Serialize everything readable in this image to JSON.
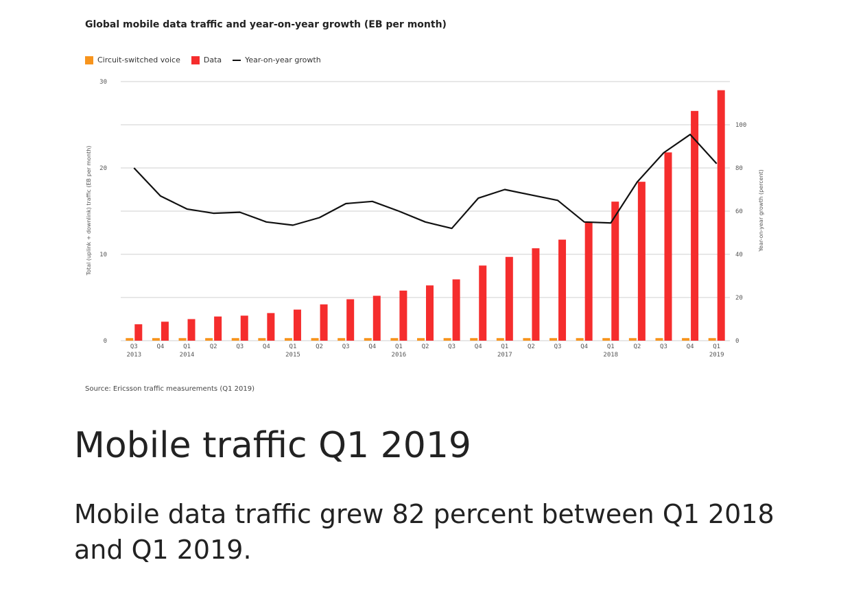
{
  "chart_data": {
    "type": "bar",
    "title": "Global mobile data traffic and year-on-year growth (EB per month)",
    "ylabel": "Total (uplink + downlink) traffic (EB per month)",
    "y2label": "Year-on-year growth (percent)",
    "xlabel": "",
    "ylim": [
      0,
      30
    ],
    "y2lim": [
      0,
      120
    ],
    "yticks": [
      "0",
      "10",
      "20",
      "30"
    ],
    "y2ticks": [
      "0",
      "20",
      "40",
      "60",
      "80",
      "100"
    ],
    "grid": true,
    "legend_position": "top-left",
    "categories": [
      {
        "q": "Q3",
        "year": "2013"
      },
      {
        "q": "Q4",
        "year": ""
      },
      {
        "q": "Q1",
        "year": "2014"
      },
      {
        "q": "Q2",
        "year": ""
      },
      {
        "q": "Q3",
        "year": ""
      },
      {
        "q": "Q4",
        "year": ""
      },
      {
        "q": "Q1",
        "year": "2015"
      },
      {
        "q": "Q2",
        "year": ""
      },
      {
        "q": "Q3",
        "year": ""
      },
      {
        "q": "Q4",
        "year": ""
      },
      {
        "q": "Q1",
        "year": "2016"
      },
      {
        "q": "Q2",
        "year": ""
      },
      {
        "q": "Q3",
        "year": ""
      },
      {
        "q": "Q4",
        "year": ""
      },
      {
        "q": "Q1",
        "year": "2017"
      },
      {
        "q": "Q2",
        "year": ""
      },
      {
        "q": "Q3",
        "year": ""
      },
      {
        "q": "Q4",
        "year": ""
      },
      {
        "q": "Q1",
        "year": "2018"
      },
      {
        "q": "Q2",
        "year": ""
      },
      {
        "q": "Q3",
        "year": ""
      },
      {
        "q": "Q4",
        "year": ""
      },
      {
        "q": "Q1",
        "year": "2019"
      }
    ],
    "series": [
      {
        "name": "Circuit-switched voice",
        "type": "bar",
        "color": "#f7941d",
        "values": [
          0.3,
          0.3,
          0.3,
          0.3,
          0.3,
          0.3,
          0.3,
          0.3,
          0.3,
          0.3,
          0.3,
          0.3,
          0.3,
          0.3,
          0.3,
          0.3,
          0.3,
          0.3,
          0.3,
          0.3,
          0.3,
          0.3,
          0.3
        ]
      },
      {
        "name": "Data",
        "type": "bar",
        "color": "#f52d2d",
        "values": [
          1.9,
          2.2,
          2.5,
          2.8,
          2.9,
          3.2,
          3.6,
          4.2,
          4.8,
          5.2,
          5.8,
          6.4,
          7.1,
          8.7,
          9.7,
          10.7,
          11.7,
          13.7,
          16.1,
          18.4,
          21.8,
          26.6,
          29.0
        ]
      },
      {
        "name": "Year-on-year growth",
        "type": "line",
        "axis": "right",
        "color": "#111111",
        "values": [
          80,
          67,
          61,
          59,
          59.5,
          55,
          53.5,
          57,
          63.5,
          64.5,
          60,
          55,
          52,
          66,
          70,
          67.5,
          65,
          55,
          54.5,
          73.5,
          87,
          95.5,
          82
        ]
      }
    ]
  },
  "source": "Source: Ericsson traffic measurements (Q1 2019)",
  "article": {
    "heading": "Mobile traffic Q1 2019",
    "body": "Mobile data traffic grew 82 percent between Q1 2018 and Q1 2019."
  }
}
